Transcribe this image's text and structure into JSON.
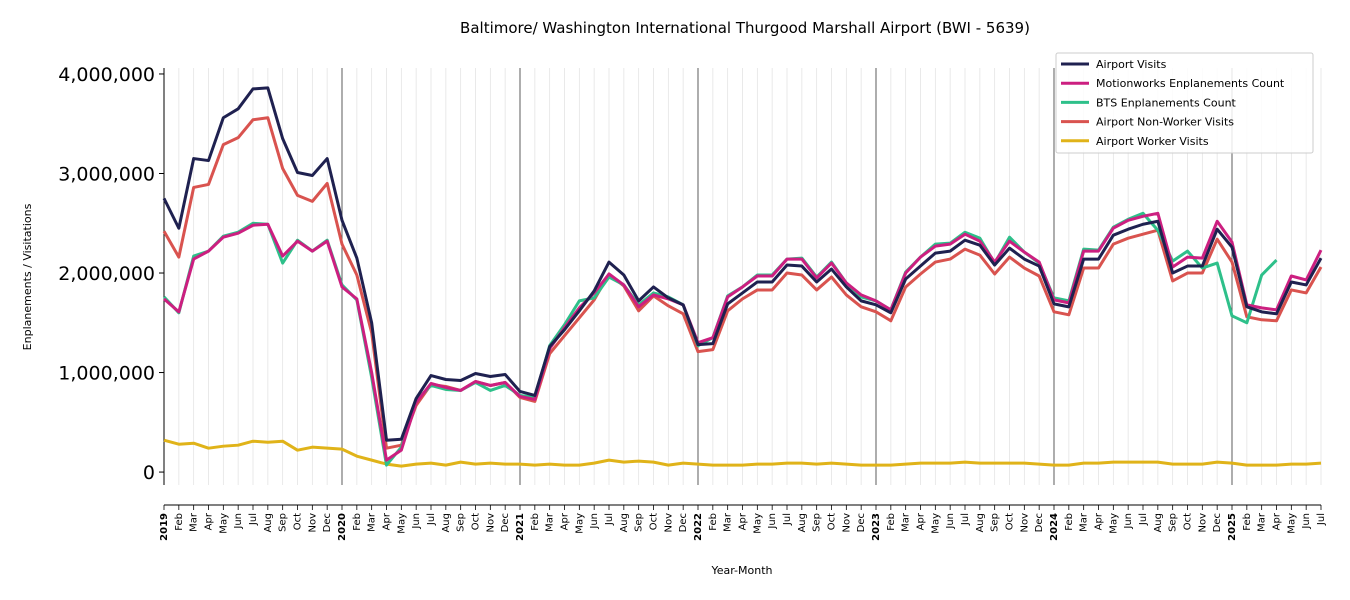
{
  "chart_data": {
    "type": "line",
    "title": "Baltimore/ Washington International Thurgood Marshall Airport (BWI - 5639)",
    "xlabel": "Year-Month",
    "ylabel": "Enplanements / Visitations",
    "categories": [
      "2019",
      "Feb",
      "Mar",
      "Apr",
      "May",
      "Jun",
      "Jul",
      "Aug",
      "Sep",
      "Oct",
      "Nov",
      "Dec",
      "2020",
      "Feb",
      "Mar",
      "Apr",
      "May",
      "Jun",
      "Jul",
      "Aug",
      "Sep",
      "Oct",
      "Nov",
      "Dec",
      "2021",
      "Feb",
      "Mar",
      "Apr",
      "May",
      "Jun",
      "Jul",
      "Aug",
      "Sep",
      "Oct",
      "Nov",
      "Dec",
      "2022",
      "Feb",
      "Mar",
      "Apr",
      "May",
      "Jun",
      "Jul",
      "Aug",
      "Sep",
      "Oct",
      "Nov",
      "Dec",
      "2023",
      "Feb",
      "Mar",
      "Apr",
      "May",
      "Jun",
      "Jul",
      "Aug",
      "Sep",
      "Oct",
      "Nov",
      "Dec",
      "2024",
      "Feb",
      "Mar",
      "Apr",
      "May",
      "Jun",
      "Jul",
      "Aug",
      "Sep",
      "Oct",
      "Nov",
      "Dec",
      "2025",
      "Feb",
      "Mar",
      "Apr",
      "May",
      "Jun",
      "Jul"
    ],
    "series": [
      {
        "name": "Airport Visits",
        "color": "#1f2150",
        "values": [
          2750000,
          2450000,
          3150000,
          3130000,
          3560000,
          3650000,
          3850000,
          3860000,
          3350000,
          3010000,
          2980000,
          3150000,
          2530000,
          2150000,
          1500000,
          320000,
          330000,
          740000,
          970000,
          930000,
          920000,
          990000,
          960000,
          980000,
          810000,
          770000,
          1260000,
          1430000,
          1620000,
          1820000,
          2110000,
          1980000,
          1720000,
          1860000,
          1750000,
          1680000,
          1280000,
          1290000,
          1690000,
          1800000,
          1910000,
          1910000,
          2080000,
          2070000,
          1910000,
          2040000,
          1860000,
          1720000,
          1680000,
          1600000,
          1940000,
          2070000,
          2200000,
          2220000,
          2330000,
          2280000,
          2080000,
          2250000,
          2140000,
          2070000,
          1690000,
          1660000,
          2140000,
          2140000,
          2380000,
          2440000,
          2490000,
          2520000,
          2000000,
          2070000,
          2070000,
          2440000,
          2260000,
          1660000,
          1610000,
          1590000,
          1910000,
          1880000,
          2150000
        ]
      },
      {
        "name": "Motionworks Enplanements Count",
        "color": "#cc1f80",
        "values": [
          1740000,
          1610000,
          2140000,
          2220000,
          2360000,
          2400000,
          2480000,
          2490000,
          2170000,
          2320000,
          2220000,
          2320000,
          1860000,
          1740000,
          1000000,
          120000,
          220000,
          700000,
          890000,
          850000,
          820000,
          910000,
          870000,
          900000,
          760000,
          730000,
          1240000,
          1450000,
          1650000,
          1800000,
          1990000,
          1880000,
          1660000,
          1780000,
          1740000,
          1680000,
          1300000,
          1350000,
          1760000,
          1860000,
          1970000,
          1970000,
          2140000,
          2140000,
          1950000,
          2100000,
          1900000,
          1780000,
          1720000,
          1630000,
          2000000,
          2160000,
          2270000,
          2290000,
          2390000,
          2320000,
          2110000,
          2320000,
          2210000,
          2110000,
          1730000,
          1700000,
          2220000,
          2220000,
          2450000,
          2530000,
          2570000,
          2600000,
          2060000,
          2160000,
          2150000,
          2520000,
          2310000,
          1680000,
          1650000,
          1630000,
          1970000,
          1930000,
          2230000
        ]
      },
      {
        "name": "BTS Enplanements Count",
        "color": "#2ec08a",
        "values": [
          1760000,
          1600000,
          2170000,
          2220000,
          2370000,
          2410000,
          2500000,
          2490000,
          2100000,
          2330000,
          2220000,
          2330000,
          1880000,
          1730000,
          950000,
          70000,
          250000,
          720000,
          870000,
          830000,
          820000,
          900000,
          820000,
          870000,
          770000,
          750000,
          1270000,
          1480000,
          1720000,
          1750000,
          1960000,
          1880000,
          1680000,
          1800000,
          1760000,
          1680000,
          1270000,
          1350000,
          1770000,
          1860000,
          1980000,
          1980000,
          2140000,
          2150000,
          1960000,
          2110000,
          1900000,
          1760000,
          1720000,
          1630000,
          2010000,
          2160000,
          2290000,
          2300000,
          2410000,
          2350000,
          2100000,
          2360000,
          2210000,
          2100000,
          1750000,
          1720000,
          2240000,
          2230000,
          2460000,
          2540000,
          2600000,
          2430000,
          2120000,
          2220000,
          2050000,
          2100000,
          1570000,
          1500000,
          1980000,
          2130000,
          null,
          null,
          null
        ]
      },
      {
        "name": "Airport Non-Worker Visits",
        "color": "#d9534f",
        "values": [
          2420000,
          2160000,
          2860000,
          2890000,
          3290000,
          3360000,
          3540000,
          3560000,
          3050000,
          2780000,
          2720000,
          2900000,
          2290000,
          1980000,
          1400000,
          240000,
          270000,
          670000,
          880000,
          860000,
          820000,
          910000,
          870000,
          900000,
          750000,
          710000,
          1190000,
          1370000,
          1550000,
          1730000,
          1990000,
          1870000,
          1620000,
          1770000,
          1670000,
          1590000,
          1210000,
          1230000,
          1620000,
          1740000,
          1830000,
          1830000,
          2000000,
          1980000,
          1830000,
          1960000,
          1780000,
          1660000,
          1610000,
          1520000,
          1860000,
          1990000,
          2110000,
          2140000,
          2240000,
          2180000,
          1990000,
          2160000,
          2050000,
          1970000,
          1610000,
          1580000,
          2050000,
          2050000,
          2290000,
          2350000,
          2390000,
          2430000,
          1920000,
          2000000,
          2000000,
          2340000,
          2110000,
          1560000,
          1530000,
          1520000,
          1830000,
          1800000,
          2060000
        ]
      },
      {
        "name": "Airport Worker Visits",
        "color": "#e0b319",
        "values": [
          320000,
          280000,
          290000,
          240000,
          260000,
          270000,
          310000,
          300000,
          310000,
          220000,
          250000,
          240000,
          230000,
          160000,
          120000,
          80000,
          60000,
          80000,
          90000,
          70000,
          100000,
          80000,
          90000,
          80000,
          80000,
          70000,
          80000,
          70000,
          70000,
          90000,
          120000,
          100000,
          110000,
          100000,
          70000,
          90000,
          80000,
          70000,
          70000,
          70000,
          80000,
          80000,
          90000,
          90000,
          80000,
          90000,
          80000,
          70000,
          70000,
          70000,
          80000,
          90000,
          90000,
          90000,
          100000,
          90000,
          90000,
          90000,
          90000,
          80000,
          70000,
          70000,
          90000,
          90000,
          100000,
          100000,
          100000,
          100000,
          80000,
          80000,
          80000,
          100000,
          90000,
          70000,
          70000,
          70000,
          80000,
          80000,
          90000
        ]
      }
    ],
    "ylim": [
      -130000,
      4060000
    ],
    "yticks": [
      0,
      {
        "value": 1000000,
        "label": "1,000,000"
      },
      {
        "value": 2000000,
        "label": "2,000,000"
      },
      {
        "value": 3000000,
        "label": "3,000,000"
      },
      {
        "value": 4000000,
        "label": "4,000,000"
      }
    ],
    "grid": true,
    "legend": "upper right"
  }
}
